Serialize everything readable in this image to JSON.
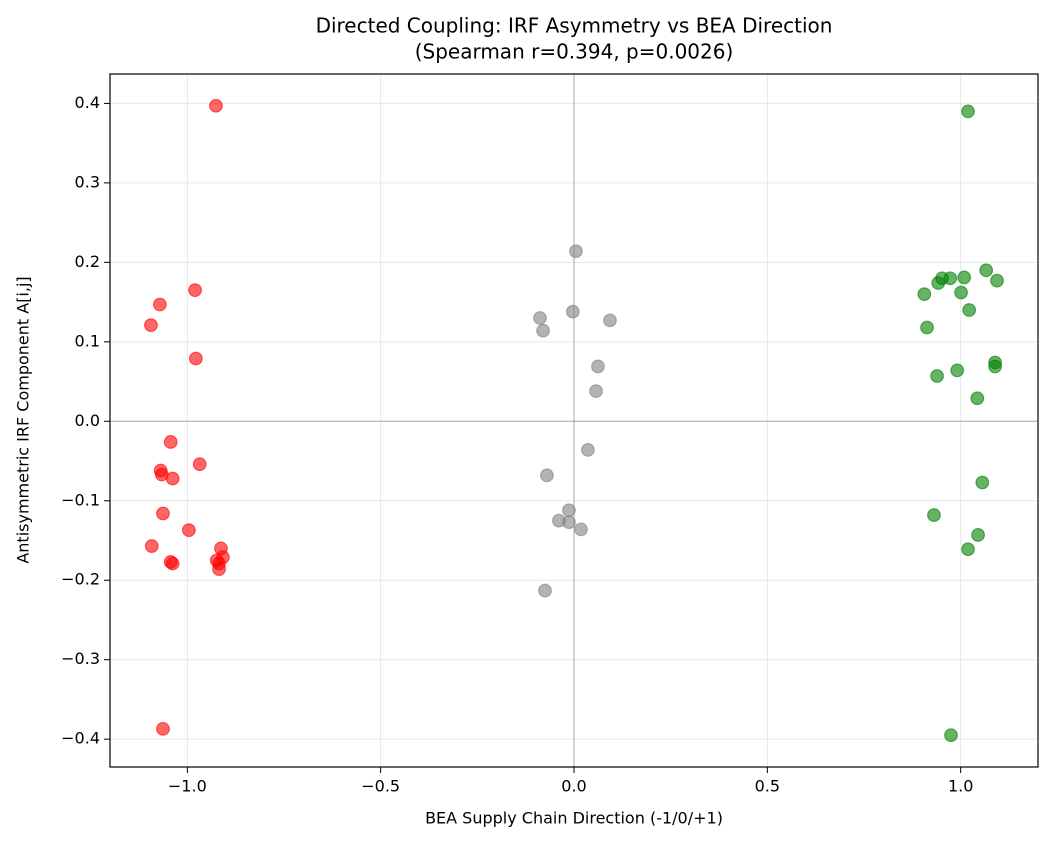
{
  "chart_data": {
    "type": "scatter",
    "title": "Directed Coupling: IRF Asymmetry vs BEA Direction",
    "subtitle": "(Spearman r=0.394, p=0.0026)",
    "xlabel": "BEA Supply Chain Direction (-1/0/+1)",
    "ylabel": "Antisymmetric IRF Component A[i,j]",
    "xlim": [
      -1.2,
      1.2
    ],
    "ylim": [
      -0.435,
      0.437
    ],
    "xticks": [
      {
        "value": -1.0,
        "label": "−1.0"
      },
      {
        "value": -0.5,
        "label": "−0.5"
      },
      {
        "value": 0.0,
        "label": "0.0"
      },
      0.5,
      {
        "value": 1.0,
        "label": "1.0"
      }
    ],
    "yticks": [
      {
        "value": -0.4,
        "label": "−0.4"
      },
      {
        "value": -0.3,
        "label": "−0.3"
      },
      {
        "value": -0.2,
        "label": "−0.2"
      },
      {
        "value": -0.1,
        "label": "−0.1"
      },
      {
        "value": 0.0,
        "label": "0.0"
      },
      0.1,
      0.2,
      0.3,
      0.4
    ],
    "grid": true,
    "zero_lines": true,
    "series": [
      {
        "color": "#ff0000",
        "x": [
          -0.926,
          -0.98,
          -1.071,
          -1.094,
          -0.978,
          -1.043,
          -1.069,
          -1.066,
          -1.038,
          -0.968,
          -1.063,
          -0.996,
          -1.092,
          -0.913,
          -0.908,
          -0.924,
          -0.918,
          -0.918,
          -1.043,
          -1.038,
          -1.063
        ],
        "values": [
          0.397,
          0.165,
          0.147,
          0.121,
          0.079,
          -0.026,
          -0.062,
          -0.067,
          -0.072,
          -0.054,
          -0.116,
          -0.137,
          -0.157,
          -0.16,
          -0.171,
          -0.175,
          -0.179,
          -0.186,
          -0.177,
          -0.179,
          -0.387
        ]
      },
      {
        "color": "#808080",
        "x": [
          0.005,
          -0.003,
          -0.088,
          -0.08,
          0.093,
          0.062,
          0.057,
          0.036,
          -0.07,
          -0.013,
          -0.039,
          -0.013,
          0.018,
          -0.075
        ],
        "values": [
          0.214,
          0.138,
          0.13,
          0.114,
          0.127,
          0.069,
          0.038,
          -0.036,
          -0.068,
          -0.112,
          -0.125,
          -0.127,
          -0.136,
          -0.213
        ]
      },
      {
        "color": "#008000",
        "x": [
          1.019,
          1.066,
          0.952,
          0.942,
          0.973,
          1.009,
          1.094,
          0.906,
          1.001,
          1.022,
          0.913,
          1.089,
          1.089,
          0.991,
          0.939,
          1.043,
          1.056,
          0.931,
          1.045,
          1.019,
          0.975
        ],
        "values": [
          0.39,
          0.19,
          0.18,
          0.174,
          0.18,
          0.181,
          0.177,
          0.16,
          0.162,
          0.14,
          0.118,
          0.074,
          0.069,
          0.064,
          0.057,
          0.029,
          -0.077,
          -0.118,
          -0.143,
          -0.161,
          -0.395
        ]
      }
    ]
  }
}
